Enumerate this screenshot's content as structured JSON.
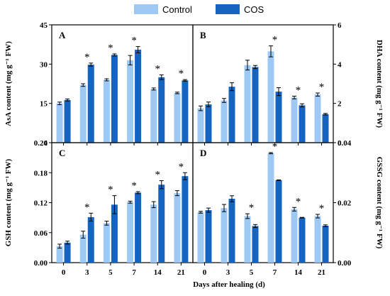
{
  "legend": [
    {
      "name": "Control",
      "color": "#9ec9f5"
    },
    {
      "name": "COS",
      "color": "#1565c0"
    }
  ],
  "xlabel": "Days after healing (d)",
  "significance_marker": "*",
  "chart_data": [
    {
      "type": "bar",
      "panel": "A",
      "ylabel": "AsA content (mg g⁻¹ FW)",
      "ylim": [
        0,
        45
      ],
      "yticks": [
        "0",
        "15",
        "30",
        "45"
      ],
      "categories": [
        "0",
        "3",
        "5",
        "7",
        "14",
        "21"
      ],
      "series": [
        {
          "name": "Control",
          "values": [
            15.0,
            22.0,
            24.0,
            31.5,
            20.5,
            19.0
          ],
          "errors": [
            0.5,
            0.5,
            0.4,
            1.8,
            0.4,
            0.3
          ]
        },
        {
          "name": "COS",
          "values": [
            16.3,
            29.8,
            33.5,
            35.5,
            25.0,
            23.8
          ],
          "errors": [
            0.4,
            0.6,
            0.4,
            1.2,
            0.9,
            0.3
          ]
        }
      ],
      "significant": [
        false,
        true,
        true,
        true,
        true,
        true
      ]
    },
    {
      "type": "bar",
      "panel": "B",
      "ylabel": "DHA content (mg g⁻¹ FW)",
      "ylim": [
        0,
        6
      ],
      "yticks": [
        "0",
        "2",
        "4",
        "6"
      ],
      "categories": [
        "0",
        "3",
        "5",
        "7",
        "14",
        "21"
      ],
      "series": [
        {
          "name": "Control",
          "values": [
            1.75,
            2.15,
            3.95,
            4.65,
            2.3,
            2.45
          ],
          "errors": [
            0.12,
            0.1,
            0.25,
            0.28,
            0.07,
            0.08
          ]
        },
        {
          "name": "COS",
          "values": [
            1.95,
            2.85,
            3.85,
            2.6,
            1.9,
            1.45
          ],
          "errors": [
            0.12,
            0.2,
            0.08,
            0.2,
            0.08,
            0.04
          ]
        }
      ],
      "significant": [
        false,
        false,
        false,
        true,
        true,
        true
      ]
    },
    {
      "type": "bar",
      "panel": "C",
      "ylabel": "GSH content (mg g⁻¹ FW)",
      "ylim": [
        0,
        0.24
      ],
      "yticks": [
        "0.00",
        "0.06",
        "0.12",
        "0.18",
        "0.24"
      ],
      "categories": [
        "0",
        "3",
        "5",
        "7",
        "14",
        "21"
      ],
      "series": [
        {
          "name": "Control",
          "values": [
            0.033,
            0.056,
            0.079,
            0.121,
            0.116,
            0.139
          ],
          "errors": [
            0.004,
            0.007,
            0.004,
            0.002,
            0.006,
            0.005
          ]
        },
        {
          "name": "COS",
          "values": [
            0.04,
            0.091,
            0.116,
            0.14,
            0.156,
            0.173
          ],
          "errors": [
            0.003,
            0.008,
            0.018,
            0.002,
            0.008,
            0.007
          ]
        }
      ],
      "significant": [
        false,
        true,
        true,
        true,
        true,
        true
      ]
    },
    {
      "type": "bar",
      "panel": "D",
      "ylabel": "GSSG content (mg g⁻¹ FW)",
      "ylim": [
        0,
        0.04
      ],
      "yticks": [
        "0.00",
        "0.02",
        "0.04"
      ],
      "categories": [
        "0",
        "3",
        "5",
        "7",
        "14",
        "21"
      ],
      "series": [
        {
          "name": "Control",
          "values": [
            0.0168,
            0.0182,
            0.0155,
            0.0365,
            0.0178,
            0.0155
          ],
          "errors": [
            0.0003,
            0.0012,
            0.0008,
            0.0002,
            0.0006,
            0.0006
          ]
        },
        {
          "name": "COS",
          "values": [
            0.0175,
            0.0213,
            0.0122,
            0.0275,
            0.015,
            0.0123
          ],
          "errors": [
            0.0007,
            0.001,
            0.0005,
            0.0001,
            0.0001,
            0.0003
          ]
        }
      ],
      "significant": [
        false,
        false,
        true,
        true,
        true,
        true
      ]
    }
  ]
}
